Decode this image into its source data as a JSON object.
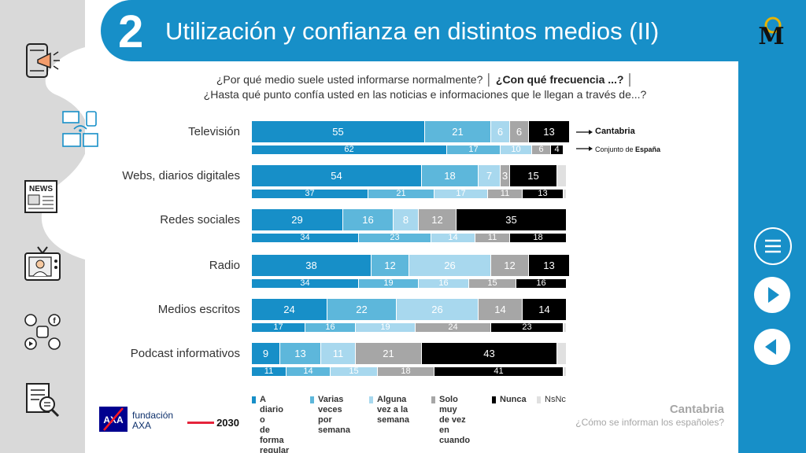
{
  "header": {
    "number": "2",
    "title": "Utilización y confianza en distintos medios (II)"
  },
  "question": {
    "part1": "¿Por qué medio suele usted informarse normalmente? │ ",
    "part2": "¿Con qué frecuencia ...?",
    "part3": " │",
    "line2": "¿Hasta qué punto confía usted en las noticias e informaciones que le llegan a través de...?"
  },
  "series_colors": [
    "#178fc8",
    "#5db7db",
    "#a8d8ee",
    "#a6a6a6",
    "#000000",
    "#e0e0e0"
  ],
  "row_labels": {
    "main": "Cantabria",
    "ref_prefix": "Conjunto de ",
    "ref_bold": "España"
  },
  "chart_data": {
    "type": "bar",
    "orientation": "horizontal-stacked-100",
    "categories": [
      "Televisión",
      "Webs, diarios digitales",
      "Redes sociales",
      "Radio",
      "Medios escritos",
      "Podcast informativos"
    ],
    "series": [
      {
        "name": "A diario o de forma regular"
      },
      {
        "name": "Varias veces por semana"
      },
      {
        "name": "Alguna vez a la semana"
      },
      {
        "name": "Solo muy de vez en cuando"
      },
      {
        "name": "Nunca"
      },
      {
        "name": "NsNc"
      }
    ],
    "groups": [
      {
        "name": "Cantabria",
        "values": [
          [
            55,
            21,
            6,
            6,
            13,
            0
          ],
          [
            54,
            18,
            7,
            3,
            15,
            3
          ],
          [
            29,
            16,
            8,
            12,
            35,
            0
          ],
          [
            38,
            12,
            26,
            12,
            13,
            0
          ],
          [
            24,
            22,
            26,
            14,
            14,
            0
          ],
          [
            9,
            13,
            11,
            21,
            43,
            3
          ]
        ],
        "labels": [
          [
            "55",
            "21",
            "6",
            "6",
            "13",
            ""
          ],
          [
            "54",
            "18",
            "7",
            "3",
            "15",
            ""
          ],
          [
            "29",
            "16",
            "8",
            "12",
            "35",
            ""
          ],
          [
            "38",
            "12",
            "26",
            "12",
            "13",
            ""
          ],
          [
            "24",
            "22",
            "26",
            "14",
            "14",
            ""
          ],
          [
            "9",
            "13",
            "11",
            "21",
            "43",
            ""
          ]
        ]
      },
      {
        "name": "Conjunto de España",
        "values": [
          [
            62,
            17,
            10,
            6,
            4,
            0
          ],
          [
            37,
            21,
            17,
            11,
            13,
            1
          ],
          [
            34,
            23,
            14,
            11,
            18,
            0
          ],
          [
            34,
            19,
            16,
            15,
            16,
            0
          ],
          [
            17,
            16,
            19,
            24,
            23,
            1
          ],
          [
            11,
            14,
            15,
            18,
            41,
            1
          ]
        ],
        "labels": [
          [
            "62",
            "17",
            "10",
            "6",
            "4",
            ""
          ],
          [
            "37",
            "21",
            "17",
            "11",
            "13",
            ""
          ],
          [
            "34",
            "23",
            "14",
            "11",
            "18",
            ""
          ],
          [
            "34",
            "19",
            "16",
            "15",
            "16",
            ""
          ],
          [
            "17",
            "16",
            "19",
            "24",
            "23",
            ""
          ],
          [
            "11",
            "14",
            "15",
            "18",
            "41",
            ""
          ]
        ]
      }
    ]
  },
  "legend": [
    {
      "label": "A diario o\nde forma\nregular"
    },
    {
      "label": "Varias\nveces por\nsemana"
    },
    {
      "label": "Alguna\nvez a la\nsemana"
    },
    {
      "label": "Solo muy\nde vez en\ncuando"
    },
    {
      "label": "Nunca"
    },
    {
      "label": "NsNc"
    }
  ],
  "footer": {
    "region": "Cantabria",
    "subtitle": "¿Cómo se informan los españoles?",
    "brand_line1": "fundación",
    "brand_line2": "AXA",
    "year_badge": "2030"
  },
  "left_icons": [
    "mobile-megaphone-icon",
    "devices-icon",
    "newspaper-icon",
    "tv-presenter-icon",
    "social-media-icon",
    "document-search-icon"
  ],
  "nav": [
    "menu-icon",
    "next-icon",
    "previous-icon"
  ]
}
